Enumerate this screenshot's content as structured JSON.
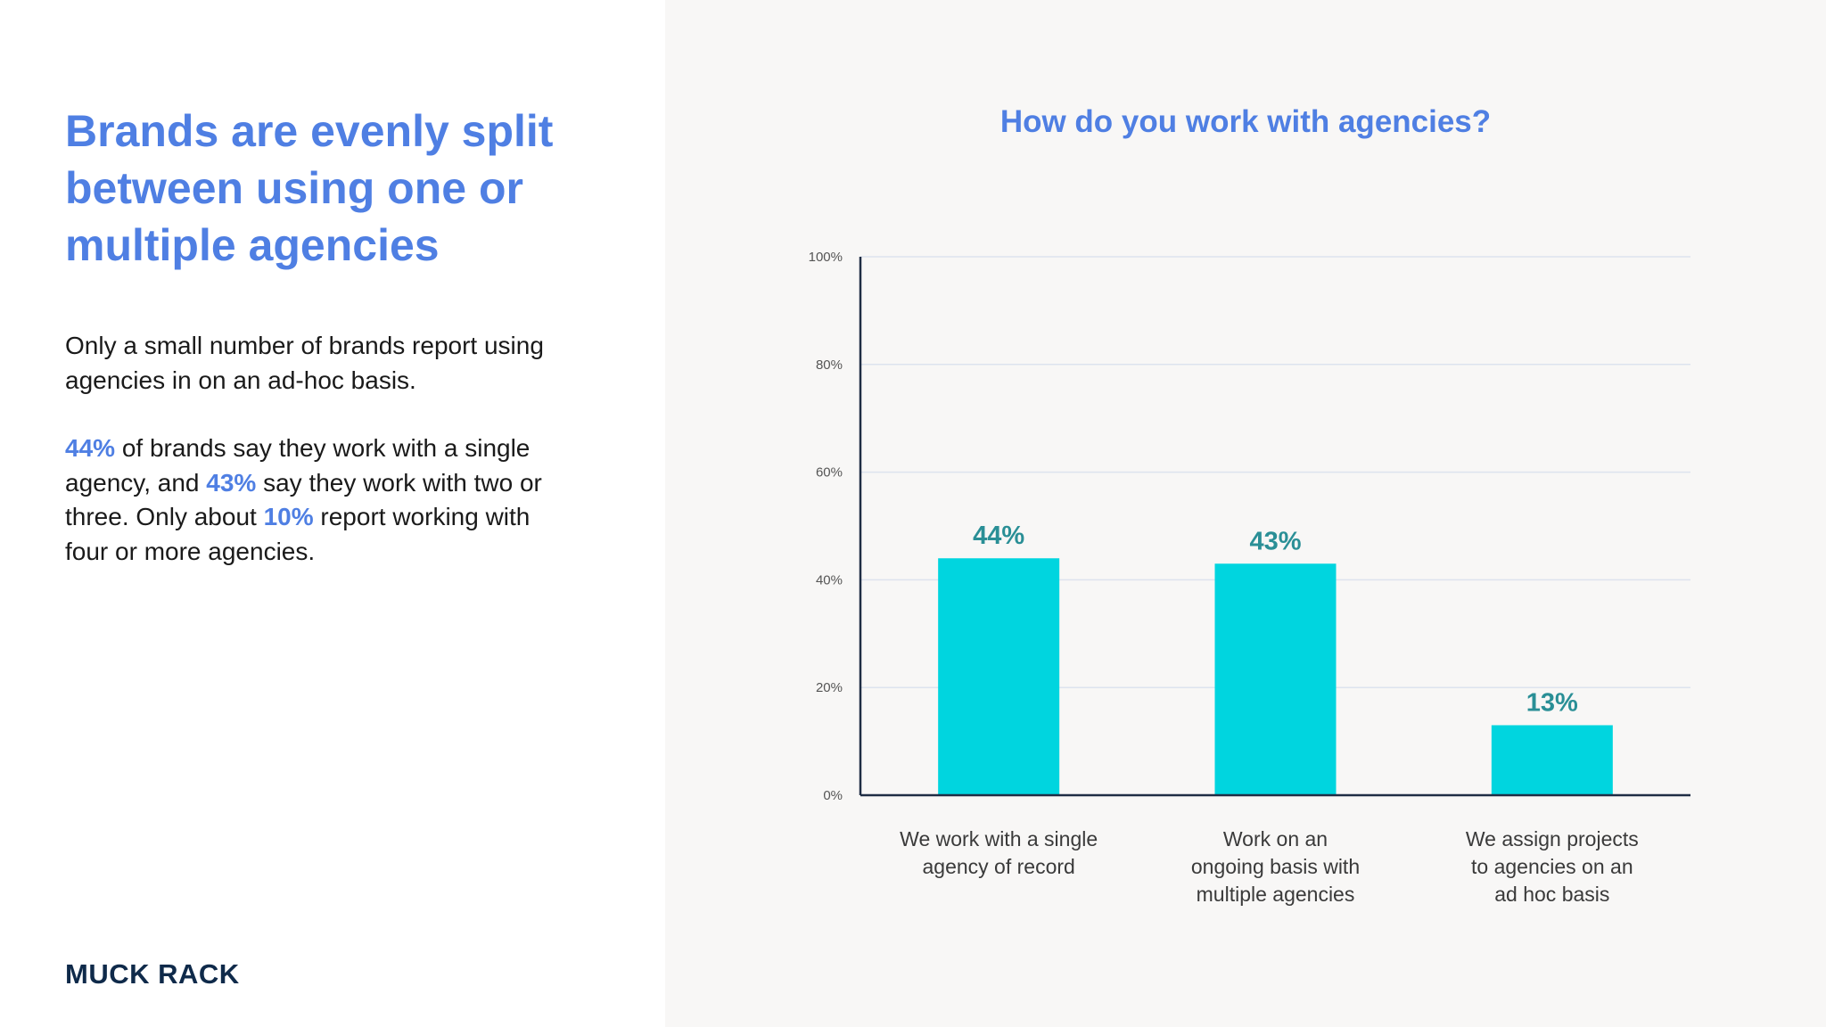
{
  "headline": "Brands are evenly split between using one or multiple agencies",
  "intro": "Only a small number of brands report using agencies in on an ad-hoc basis.",
  "detail": {
    "p1": "44%",
    "t1": " of brands say they work with a single agency, and ",
    "p2": "43%",
    "t2": " say they work with two or three. Only about ",
    "p3": "10%",
    "t3": " report working with four or more agencies."
  },
  "logo": "MUCK RACK",
  "colors": {
    "accent": "#4f7fe3",
    "bar": "#00d5df",
    "data_label": "#2a8f96",
    "navy": "#0f2a4a"
  },
  "chart_data": {
    "type": "bar",
    "title": "How do you work with agencies?",
    "categories": [
      "We work with a single agency of record",
      "Work on an ongoing basis with multiple agencies",
      "We assign projects to agencies on an ad hoc basis"
    ],
    "category_lines": [
      [
        "We work with a single",
        "agency of record"
      ],
      [
        "Work on an",
        "ongoing basis with",
        "multiple agencies"
      ],
      [
        "We assign projects",
        "to agencies on an",
        "ad hoc basis"
      ]
    ],
    "values": [
      44,
      43,
      13
    ],
    "data_labels": [
      "44%",
      "43%",
      "13%"
    ],
    "yticks": [
      "0%",
      "20%",
      "40%",
      "60%",
      "80%",
      "100%"
    ],
    "ylim": [
      0,
      100
    ],
    "xlabel": "",
    "ylabel": "",
    "grid": true
  }
}
